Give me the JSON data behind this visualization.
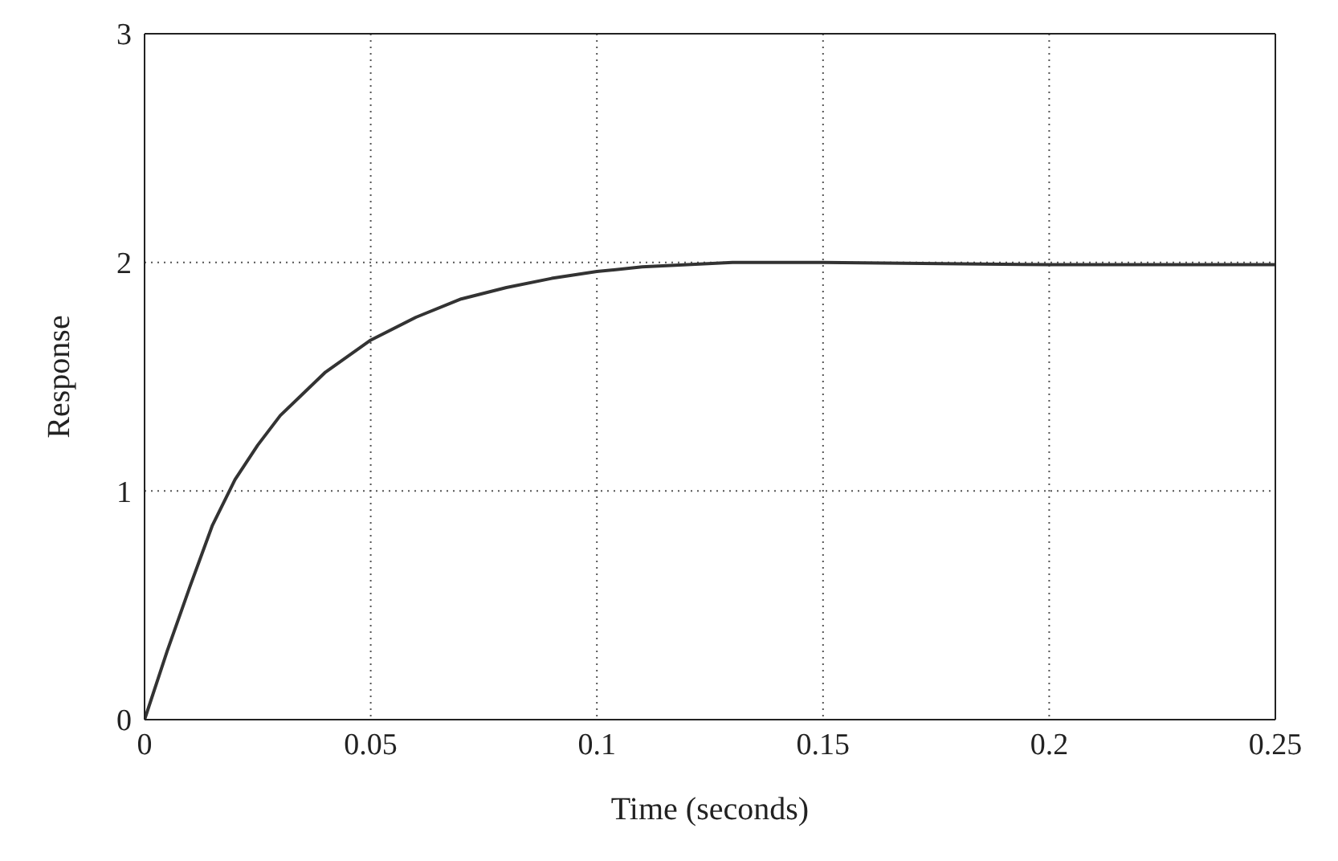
{
  "chart_data": {
    "type": "line",
    "xlabel": "Time (seconds)",
    "ylabel": "Response",
    "x": [
      0,
      0.005,
      0.01,
      0.015,
      0.02,
      0.025,
      0.03,
      0.04,
      0.05,
      0.06,
      0.07,
      0.08,
      0.09,
      0.1,
      0.11,
      0.12,
      0.13,
      0.15,
      0.2,
      0.25
    ],
    "series": [
      {
        "color": "#333333",
        "values": [
          0,
          0.3,
          0.58,
          0.85,
          1.05,
          1.2,
          1.33,
          1.52,
          1.66,
          1.76,
          1.84,
          1.89,
          1.93,
          1.96,
          1.98,
          1.99,
          2.0,
          2.0,
          1.99,
          1.99
        ]
      }
    ],
    "xlim": [
      0,
      0.25
    ],
    "xticks": [
      0,
      0.05,
      0.1,
      0.15,
      0.2,
      0.25
    ],
    "ylim": [
      0,
      3
    ],
    "yticks": [
      0,
      1,
      2,
      3
    ],
    "grid": true,
    "marker": "none",
    "line_style": "solid"
  }
}
